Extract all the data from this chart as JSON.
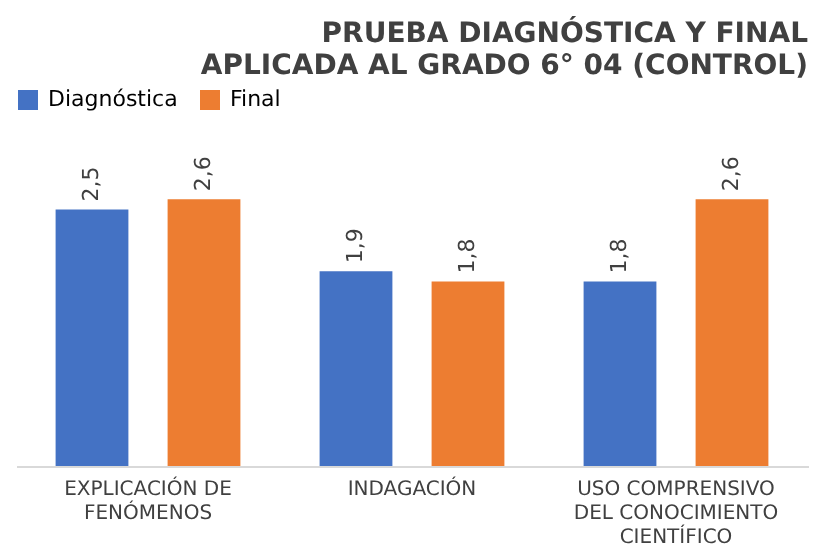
{
  "chart_data": {
    "type": "bar",
    "title": "PRUEBA DIAGNÓSTICA Y FINAL APLICADA AL GRADO 6° 04 (CONTROL)",
    "categories": [
      "EXPLICACIÓN DE FENÓMENOS",
      "INDAGACIÓN",
      "USO COMPRENSIVO DEL CONOCIMIENTO CIENTÍFICO"
    ],
    "series": [
      {
        "name": "Diagnóstica",
        "color": "#4472c4",
        "values": [
          2.5,
          1.9,
          1.8
        ],
        "value_labels": [
          "2,5",
          "1,9",
          "1,8"
        ]
      },
      {
        "name": "Final",
        "color": "#ed7d31",
        "values": [
          2.6,
          1.8,
          2.6
        ],
        "value_labels": [
          "2,6",
          "1,8",
          "2,6"
        ]
      }
    ],
    "legend": "top",
    "tick_labels": "x"
  }
}
